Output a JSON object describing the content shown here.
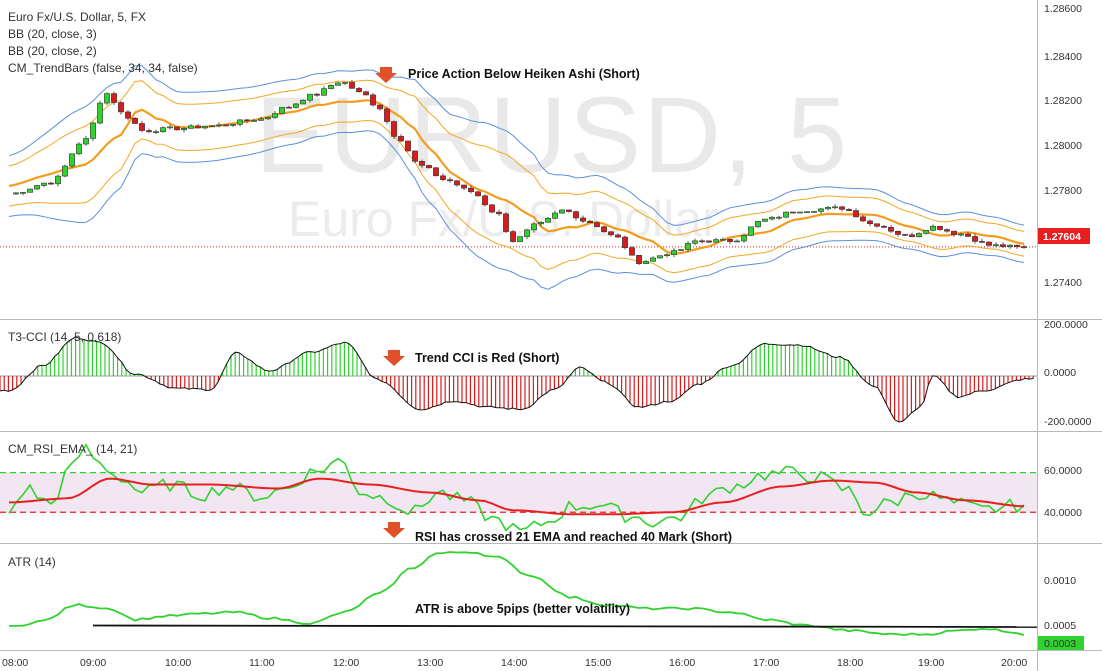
{
  "main": {
    "title": "Euro Fx/U.S. Dollar, 5, FX",
    "watermark_symbol": "EURUSD, 5",
    "watermark_name": "Euro Fx/U.S. Dollar",
    "indicators": [
      "BB (20, close, 3)",
      "BB (20, close, 2)",
      "CM_TrendBars (false, 34, 34, false)"
    ],
    "annotation": "Price Action Below Heiken Ashi (Short)",
    "price_axis": [
      "1.28600",
      "1.28400",
      "1.28200",
      "1.28000",
      "1.27800",
      "1.27400"
    ],
    "last_price": "1.27604"
  },
  "cci": {
    "title": "T3-CCI (14, 5, 0.618)",
    "annotation": "Trend CCI is Red (Short)",
    "axis": [
      "200.0000",
      "0.0000",
      "-200.0000"
    ]
  },
  "rsi": {
    "title": "CM_RSI_EMA_ (14, 21)",
    "annotation": "RSI has crossed 21 EMA and reached 40 Mark (Short)",
    "axis": [
      "60.0000",
      "40.0000"
    ]
  },
  "atr": {
    "title": "ATR (14)",
    "annotation": "ATR is above 5pips  (better volatility)",
    "axis": [
      "0.0010",
      "0.0005"
    ],
    "last_value": "0.0003"
  },
  "time_axis": [
    "08:00",
    "09:00",
    "10:00",
    "11:00",
    "12:00",
    "13:00",
    "14:00",
    "15:00",
    "16:00",
    "17:00",
    "18:00",
    "19:00",
    "20:00"
  ],
  "colors": {
    "bull": "#2fd22f",
    "bear": "#d91b1b",
    "bb_outer": "#5b8fdc",
    "bb_inner": "#f5a623",
    "basis": "#f39c1e",
    "price_line": "#e81f1f",
    "rsi": "#2fd22f",
    "rsi_ema": "#e81f1f",
    "band_fill": "#f3e6f3",
    "atr": "#2fd22f"
  },
  "chart_data": [
    {
      "type": "candlestick",
      "name": "price",
      "x_range": [
        "08:00",
        "20:00"
      ],
      "ylim": [
        1.273,
        1.2865
      ],
      "last_price": 1.27604,
      "anchors": [
        [
          0,
          1.2783
        ],
        [
          0.5,
          1.2788
        ],
        [
          0.9,
          1.2806
        ],
        [
          1.15,
          1.2826
        ],
        [
          1.4,
          1.2816
        ],
        [
          1.6,
          1.281
        ],
        [
          2.0,
          1.2811
        ],
        [
          2.4,
          1.2812
        ],
        [
          3.0,
          1.2815
        ],
        [
          3.3,
          1.282
        ],
        [
          3.6,
          1.2825
        ],
        [
          3.95,
          1.2831
        ],
        [
          4.2,
          1.2826
        ],
        [
          4.4,
          1.282
        ],
        [
          4.6,
          1.2808
        ],
        [
          4.9,
          1.2795
        ],
        [
          5.2,
          1.2789
        ],
        [
          5.5,
          1.2784
        ],
        [
          5.8,
          1.2775
        ],
        [
          6.0,
          1.2763
        ],
        [
          6.3,
          1.277
        ],
        [
          6.6,
          1.2776
        ],
        [
          6.9,
          1.2771
        ],
        [
          7.2,
          1.2765
        ],
        [
          7.5,
          1.2754
        ],
        [
          7.9,
          1.2758
        ],
        [
          8.2,
          1.2763
        ],
        [
          8.6,
          1.2763
        ],
        [
          9.0,
          1.2772
        ],
        [
          9.4,
          1.2776
        ],
        [
          9.9,
          1.2777
        ],
        [
          10.3,
          1.277
        ],
        [
          10.7,
          1.2765
        ],
        [
          11.0,
          1.2769
        ],
        [
          11.3,
          1.2766
        ],
        [
          11.7,
          1.2761
        ],
        [
          12.1,
          1.276
        ]
      ],
      "bb_half_width": [
        [
          0,
          0.0013
        ],
        [
          1.0,
          0.0025
        ],
        [
          2.0,
          0.0015
        ],
        [
          4.4,
          0.0013
        ],
        [
          5.0,
          0.0023
        ],
        [
          5.8,
          0.003
        ],
        [
          7.0,
          0.002
        ],
        [
          8.0,
          0.0012
        ],
        [
          9.0,
          0.0013
        ],
        [
          10.2,
          0.0011
        ],
        [
          11.0,
          0.0009
        ],
        [
          12.1,
          0.0008
        ]
      ]
    },
    {
      "type": "histogram",
      "name": "T3-CCI",
      "ylim": [
        -260,
        260
      ],
      "anchors": [
        [
          0,
          -70
        ],
        [
          0.4,
          50
        ],
        [
          0.8,
          185
        ],
        [
          1.1,
          160
        ],
        [
          1.5,
          10
        ],
        [
          2.0,
          -60
        ],
        [
          2.4,
          -65
        ],
        [
          2.7,
          110
        ],
        [
          3.1,
          25
        ],
        [
          3.6,
          115
        ],
        [
          4.0,
          160
        ],
        [
          4.4,
          -20
        ],
        [
          4.9,
          -160
        ],
        [
          5.3,
          -120
        ],
        [
          5.7,
          -150
        ],
        [
          6.1,
          -160
        ],
        [
          6.5,
          -65
        ],
        [
          6.8,
          40
        ],
        [
          7.1,
          -30
        ],
        [
          7.5,
          -150
        ],
        [
          7.9,
          -120
        ],
        [
          8.2,
          -40
        ],
        [
          8.6,
          50
        ],
        [
          9.0,
          155
        ],
        [
          9.4,
          150
        ],
        [
          9.9,
          90
        ],
        [
          10.3,
          -50
        ],
        [
          10.6,
          -225
        ],
        [
          10.85,
          -150
        ],
        [
          11.0,
          0
        ],
        [
          11.3,
          -100
        ],
        [
          11.6,
          -70
        ],
        [
          12.1,
          -15
        ]
      ]
    },
    {
      "type": "line",
      "name": "RSI",
      "ylim": [
        25,
        80
      ],
      "levels": [
        60,
        40
      ],
      "rsi_anchors": [
        [
          0,
          40
        ],
        [
          0.2,
          52
        ],
        [
          0.5,
          44
        ],
        [
          0.7,
          60
        ],
        [
          0.9,
          72
        ],
        [
          1.1,
          64
        ],
        [
          1.3,
          58
        ],
        [
          1.6,
          50
        ],
        [
          1.9,
          54
        ],
        [
          2.3,
          49
        ],
        [
          2.6,
          53
        ],
        [
          3.0,
          48
        ],
        [
          3.3,
          52
        ],
        [
          3.6,
          60
        ],
        [
          3.95,
          66
        ],
        [
          4.2,
          50
        ],
        [
          4.5,
          47
        ],
        [
          4.8,
          40
        ],
        [
          5.1,
          50
        ],
        [
          5.4,
          46
        ],
        [
          5.8,
          36
        ],
        [
          6.1,
          30
        ],
        [
          6.4,
          35
        ],
        [
          6.7,
          43
        ],
        [
          7.0,
          44
        ],
        [
          7.4,
          38
        ],
        [
          7.7,
          35
        ],
        [
          8.0,
          38
        ],
        [
          8.3,
          48
        ],
        [
          8.6,
          53
        ],
        [
          9.0,
          59
        ],
        [
          9.3,
          60
        ],
        [
          9.6,
          58
        ],
        [
          10.0,
          51
        ],
        [
          10.2,
          40
        ],
        [
          10.5,
          45
        ],
        [
          10.8,
          50
        ],
        [
          11.0,
          48
        ],
        [
          11.3,
          44
        ],
        [
          11.6,
          41
        ],
        [
          11.9,
          43
        ],
        [
          12.1,
          44
        ]
      ],
      "ema_anchors": [
        [
          0,
          45
        ],
        [
          0.7,
          47
        ],
        [
          1.2,
          57
        ],
        [
          1.7,
          54
        ],
        [
          2.4,
          54
        ],
        [
          3.2,
          52
        ],
        [
          3.7,
          57
        ],
        [
          4.3,
          54
        ],
        [
          5.0,
          50
        ],
        [
          5.6,
          46
        ],
        [
          6.0,
          41
        ],
        [
          6.7,
          39
        ],
        [
          7.2,
          39
        ],
        [
          7.9,
          40
        ],
        [
          8.5,
          45
        ],
        [
          9.2,
          53
        ],
        [
          9.8,
          56
        ],
        [
          10.3,
          55
        ],
        [
          10.8,
          50
        ],
        [
          11.4,
          46
        ],
        [
          12.1,
          43
        ]
      ]
    },
    {
      "type": "line",
      "name": "ATR",
      "ylim": [
        0.0001,
        0.0015
      ],
      "reference_level": 0.0005,
      "anchors": [
        [
          0,
          0.0004
        ],
        [
          0.4,
          0.00048
        ],
        [
          0.8,
          0.0007
        ],
        [
          1.2,
          0.00065
        ],
        [
          1.5,
          0.0005
        ],
        [
          1.9,
          0.00055
        ],
        [
          2.3,
          0.00058
        ],
        [
          2.7,
          0.0006
        ],
        [
          3.1,
          0.00052
        ],
        [
          3.6,
          0.00045
        ],
        [
          4.0,
          0.0006
        ],
        [
          4.4,
          0.00085
        ],
        [
          4.8,
          0.0012
        ],
        [
          5.1,
          0.0014
        ],
        [
          5.5,
          0.00142
        ],
        [
          5.8,
          0.00135
        ],
        [
          6.2,
          0.0011
        ],
        [
          6.7,
          0.0008
        ],
        [
          7.1,
          0.0007
        ],
        [
          7.6,
          0.00065
        ],
        [
          8.1,
          0.00065
        ],
        [
          8.6,
          0.0006
        ],
        [
          9.0,
          0.0005
        ],
        [
          9.5,
          0.00042
        ],
        [
          10.0,
          0.00035
        ],
        [
          10.5,
          0.0003
        ],
        [
          10.9,
          0.0003
        ],
        [
          11.3,
          0.00035
        ],
        [
          11.6,
          0.00038
        ],
        [
          11.9,
          0.00034
        ],
        [
          12.1,
          0.0003
        ]
      ]
    }
  ]
}
